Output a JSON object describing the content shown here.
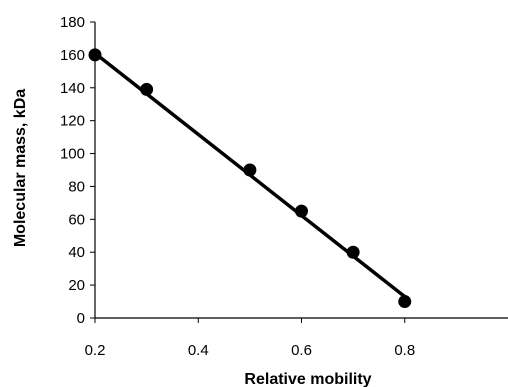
{
  "chart_data": {
    "type": "scatter",
    "title": "",
    "xlabel": "Relative mobility",
    "ylabel": "Molecular mass, kDa",
    "xlim": [
      0.2,
      1.0
    ],
    "ylim": [
      0,
      180
    ],
    "x_ticks": [
      0.2,
      0.4,
      0.6,
      0.8
    ],
    "y_ticks": [
      0,
      20,
      40,
      60,
      80,
      100,
      120,
      140,
      160,
      180
    ],
    "grid": false,
    "legend": "none",
    "series": [
      {
        "x": [
          0.2,
          0.3,
          0.5,
          0.6,
          0.7,
          0.8
        ],
        "y": [
          160,
          139,
          90,
          65,
          40,
          10
        ],
        "marker": "circle",
        "color": "#000000"
      }
    ],
    "trendline": {
      "type": "linear",
      "x": [
        0.2,
        0.8
      ],
      "y": [
        161,
        13
      ],
      "color": "#000000"
    }
  }
}
